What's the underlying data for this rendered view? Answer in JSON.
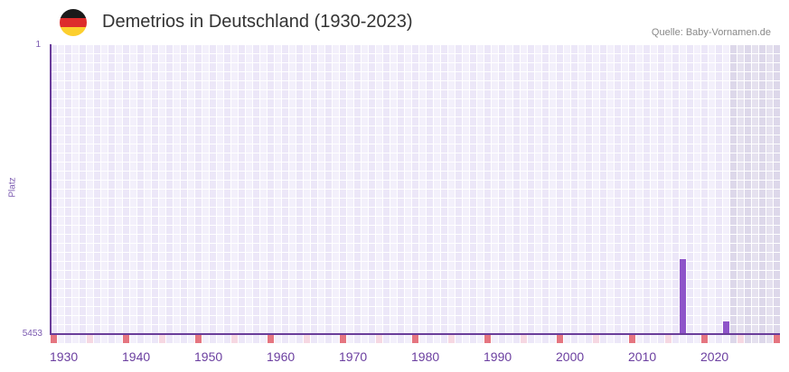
{
  "header": {
    "title": "Demetrios in Deutschland (1930-2023)",
    "source": "Quelle: Baby-Vornamen.de",
    "flag_icon": "germany-flag-icon",
    "flag_colors": [
      "#1a1a1a",
      "#dd2c2c",
      "#fccf2e"
    ]
  },
  "colors": {
    "bar": "#8e54c9",
    "axis": "#6a3d9a",
    "cell_dark": "#ece7f8",
    "cell_light": "#f3f0fb",
    "cell_future_dark": "#ddd8ea",
    "cell_future_light": "#e5e1ef",
    "marker_decade": "#e57580",
    "marker_half": "#f6d8e2"
  },
  "chart_data": {
    "type": "bar",
    "title": "Demetrios in Deutschland (1930-2023)",
    "xlabel": "",
    "ylabel": "Platz",
    "y_inverted": true,
    "ylim": [
      1,
      5453
    ],
    "ytick_labels": [
      "1",
      "5453"
    ],
    "x_range": [
      1930,
      2030
    ],
    "data_last_year": 2023,
    "xtick_labels": [
      "1930",
      "1940",
      "1950",
      "1960",
      "1970",
      "1980",
      "1990",
      "2000",
      "2010",
      "2020"
    ],
    "x": [
      2017,
      2023
    ],
    "values": [
      4040,
      5215
    ],
    "grid": true,
    "legend": null,
    "annotation": "Quelle: Baby-Vornamen.de"
  }
}
